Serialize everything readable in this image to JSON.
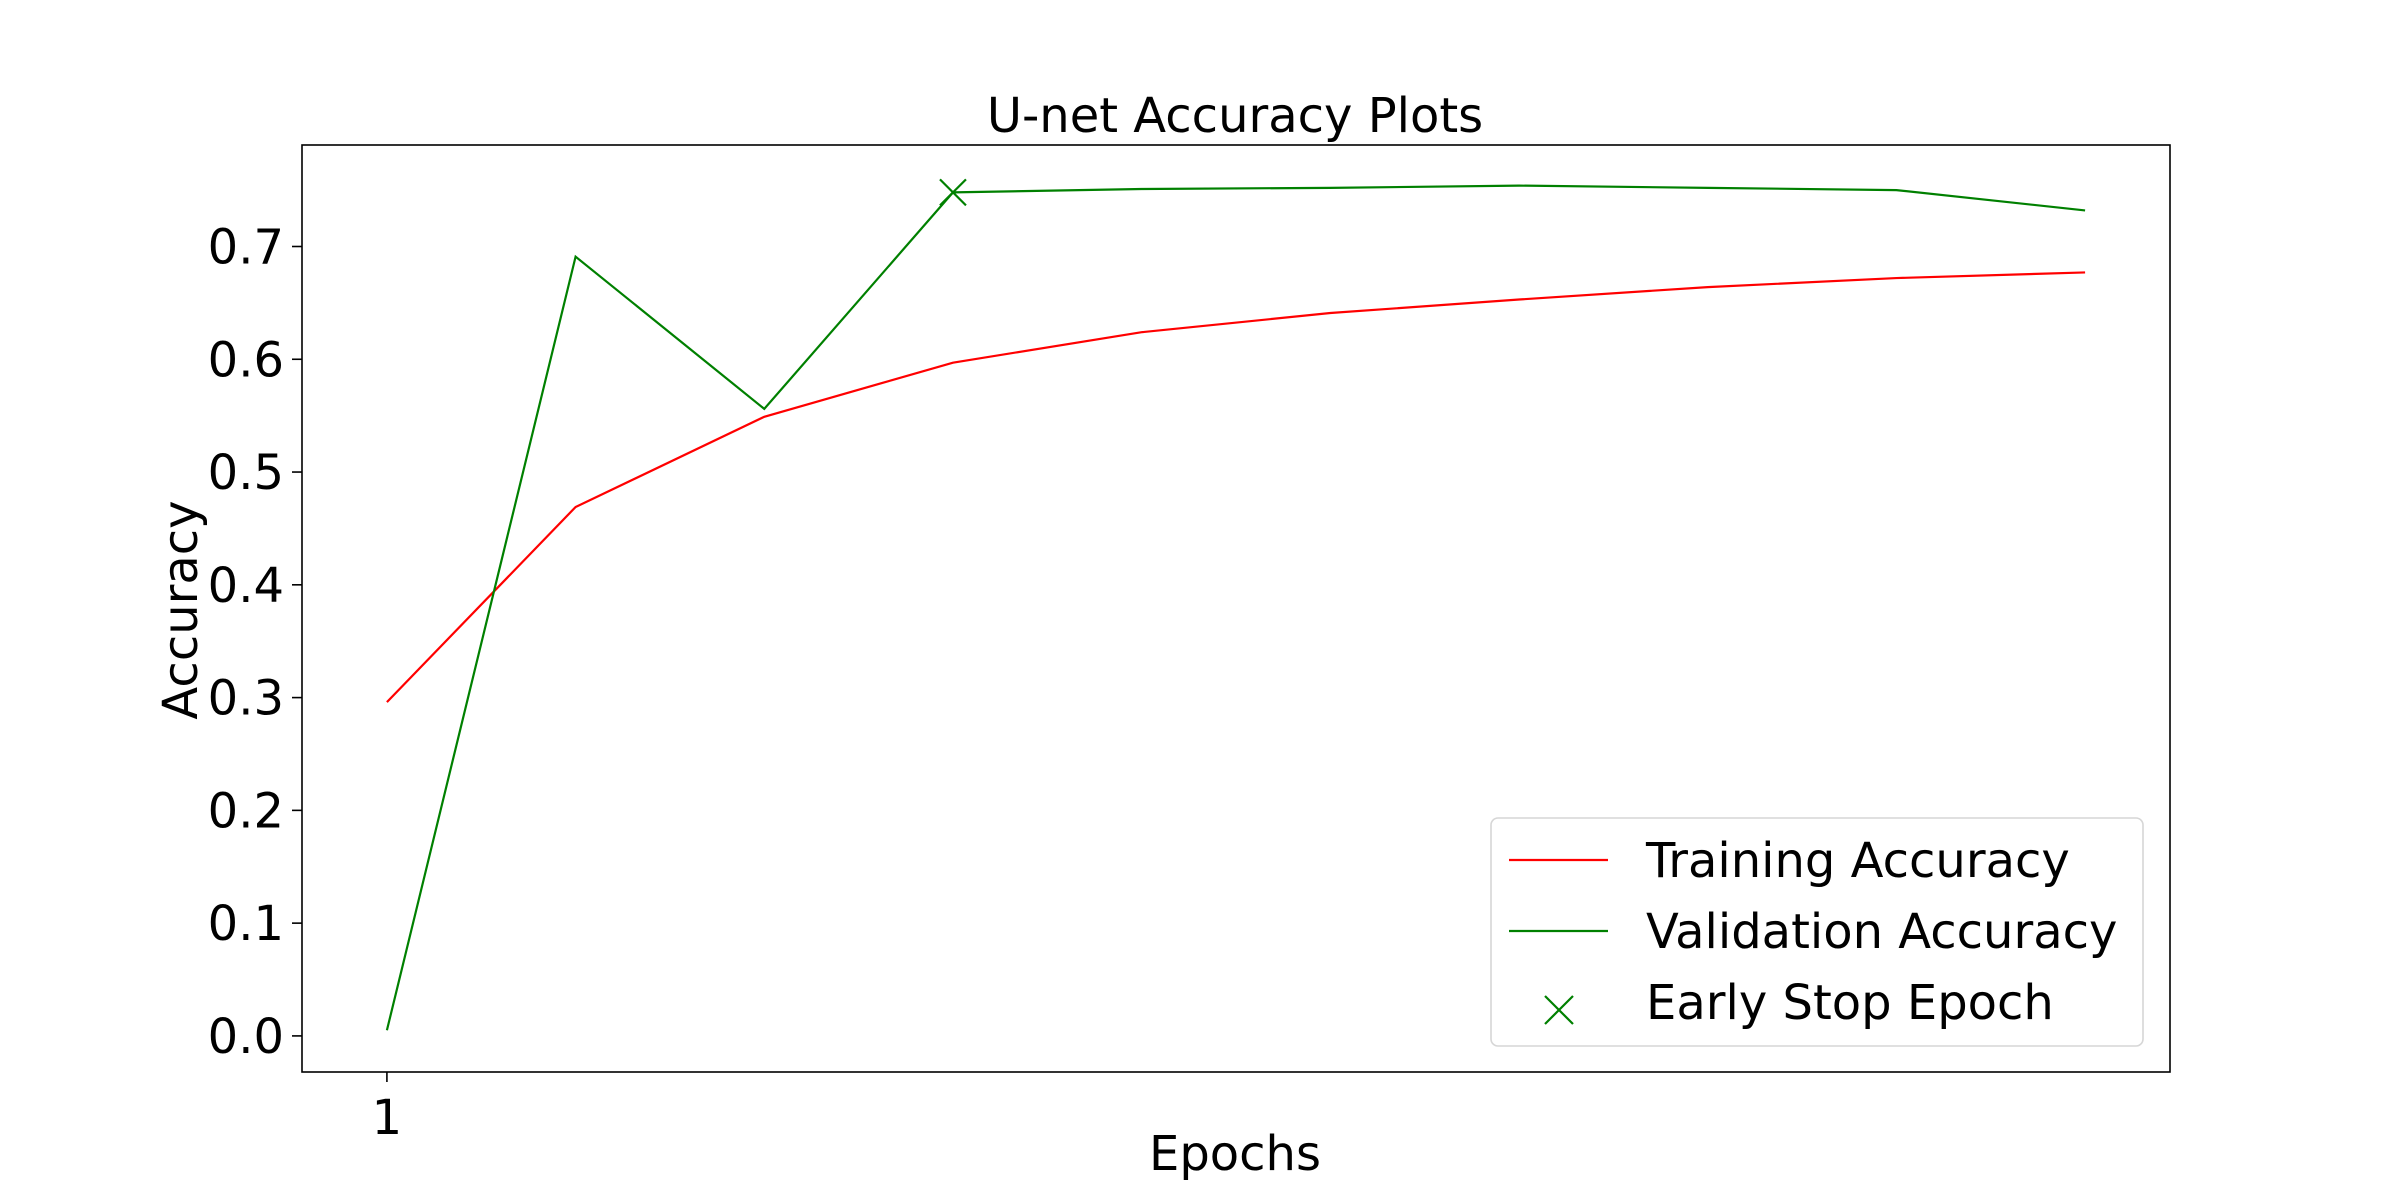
{
  "chart_data": {
    "type": "line",
    "title": "U-net Accuracy Plots",
    "xlabel": "Epochs",
    "ylabel": "Accuracy",
    "x": [
      1,
      2,
      3,
      4,
      5,
      6,
      7,
      8,
      9,
      10
    ],
    "x_ticks": [
      "1"
    ],
    "y_ticks": [
      "0.0",
      "0.1",
      "0.2",
      "0.3",
      "0.4",
      "0.5",
      "0.6",
      "0.7"
    ],
    "xlim": [
      0.55,
      10.45
    ],
    "ylim": [
      -0.032,
      0.79
    ],
    "grid": false,
    "legend_position": "lower-right",
    "series": [
      {
        "name": "Training Accuracy",
        "color": "#ff0000",
        "values": [
          0.296,
          0.469,
          0.549,
          0.597,
          0.624,
          0.641,
          0.653,
          0.664,
          0.672,
          0.677
        ]
      },
      {
        "name": "Validation Accuracy",
        "color": "#008000",
        "values": [
          0.005,
          0.691,
          0.556,
          0.748,
          0.751,
          0.752,
          0.754,
          0.752,
          0.75,
          0.732
        ]
      }
    ],
    "markers": [
      {
        "name": "Early Stop Epoch",
        "color": "#008000",
        "symbol": "x",
        "x": 4,
        "y": 0.748
      }
    ]
  }
}
